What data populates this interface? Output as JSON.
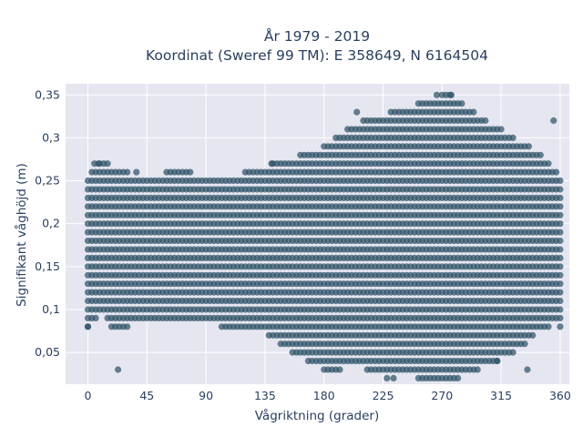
{
  "chart_data": {
    "type": "scatter",
    "title_line1": "År 1979 - 2019",
    "title_line2": "Koordinat (Sweref 99 TM): E 358649, N 6164504",
    "xlabel": "Vågriktning (grader)",
    "ylabel": "Signifikant våghöjd (m)",
    "xlim": [
      -17,
      367
    ],
    "ylim": [
      0.013,
      0.363
    ],
    "xticks": [
      0,
      45,
      90,
      135,
      180,
      225,
      270,
      315,
      360
    ],
    "xtick_labels": [
      "0",
      "45",
      "90",
      "135",
      "180",
      "225",
      "270",
      "315",
      "360"
    ],
    "yticks": [
      0.05,
      0.1,
      0.15,
      0.2,
      0.25,
      0.3,
      0.35
    ],
    "ytick_labels": [
      "0,05",
      "0,1",
      "0,15",
      "0,2",
      "0,25",
      "0,3",
      "0,35"
    ],
    "grid": true,
    "marker_color": "#2f5368",
    "background_color": "#e5e6f0",
    "y_step": 0.01,
    "x_step": 3,
    "density_envelope": [
      {
        "x": 0,
        "ymin": 0.08,
        "ymax": 0.25
      },
      {
        "x": 10,
        "ymin": 0.1,
        "ymax": 0.27
      },
      {
        "x": 20,
        "ymin": 0.08,
        "ymax": 0.26
      },
      {
        "x": 45,
        "ymin": 0.09,
        "ymax": 0.25
      },
      {
        "x": 70,
        "ymin": 0.09,
        "ymax": 0.26
      },
      {
        "x": 90,
        "ymin": 0.09,
        "ymax": 0.25
      },
      {
        "x": 110,
        "ymin": 0.08,
        "ymax": 0.25
      },
      {
        "x": 130,
        "ymin": 0.08,
        "ymax": 0.26
      },
      {
        "x": 150,
        "ymin": 0.06,
        "ymax": 0.27
      },
      {
        "x": 170,
        "ymin": 0.04,
        "ymax": 0.28
      },
      {
        "x": 185,
        "ymin": 0.03,
        "ymax": 0.29
      },
      {
        "x": 200,
        "ymin": 0.04,
        "ymax": 0.31
      },
      {
        "x": 220,
        "ymin": 0.03,
        "ymax": 0.32
      },
      {
        "x": 240,
        "ymin": 0.03,
        "ymax": 0.33
      },
      {
        "x": 260,
        "ymin": 0.02,
        "ymax": 0.34
      },
      {
        "x": 275,
        "ymin": 0.02,
        "ymax": 0.35
      },
      {
        "x": 290,
        "ymin": 0.03,
        "ymax": 0.33
      },
      {
        "x": 310,
        "ymin": 0.04,
        "ymax": 0.31
      },
      {
        "x": 330,
        "ymin": 0.06,
        "ymax": 0.29
      },
      {
        "x": 345,
        "ymin": 0.08,
        "ymax": 0.28
      },
      {
        "x": 360,
        "ymin": 0.09,
        "ymax": 0.25
      }
    ],
    "outliers": [
      {
        "x": 0,
        "y": 0.08
      },
      {
        "x": 23,
        "y": 0.03
      },
      {
        "x": 5,
        "y": 0.27
      },
      {
        "x": 8,
        "y": 0.27
      },
      {
        "x": 37,
        "y": 0.26
      },
      {
        "x": 140,
        "y": 0.27
      },
      {
        "x": 205,
        "y": 0.33
      },
      {
        "x": 228,
        "y": 0.02
      },
      {
        "x": 233,
        "y": 0.02
      },
      {
        "x": 266,
        "y": 0.35
      },
      {
        "x": 277,
        "y": 0.35
      },
      {
        "x": 355,
        "y": 0.32
      },
      {
        "x": 360,
        "y": 0.08
      },
      {
        "x": 335,
        "y": 0.03
      },
      {
        "x": 312,
        "y": 0.04
      }
    ]
  }
}
